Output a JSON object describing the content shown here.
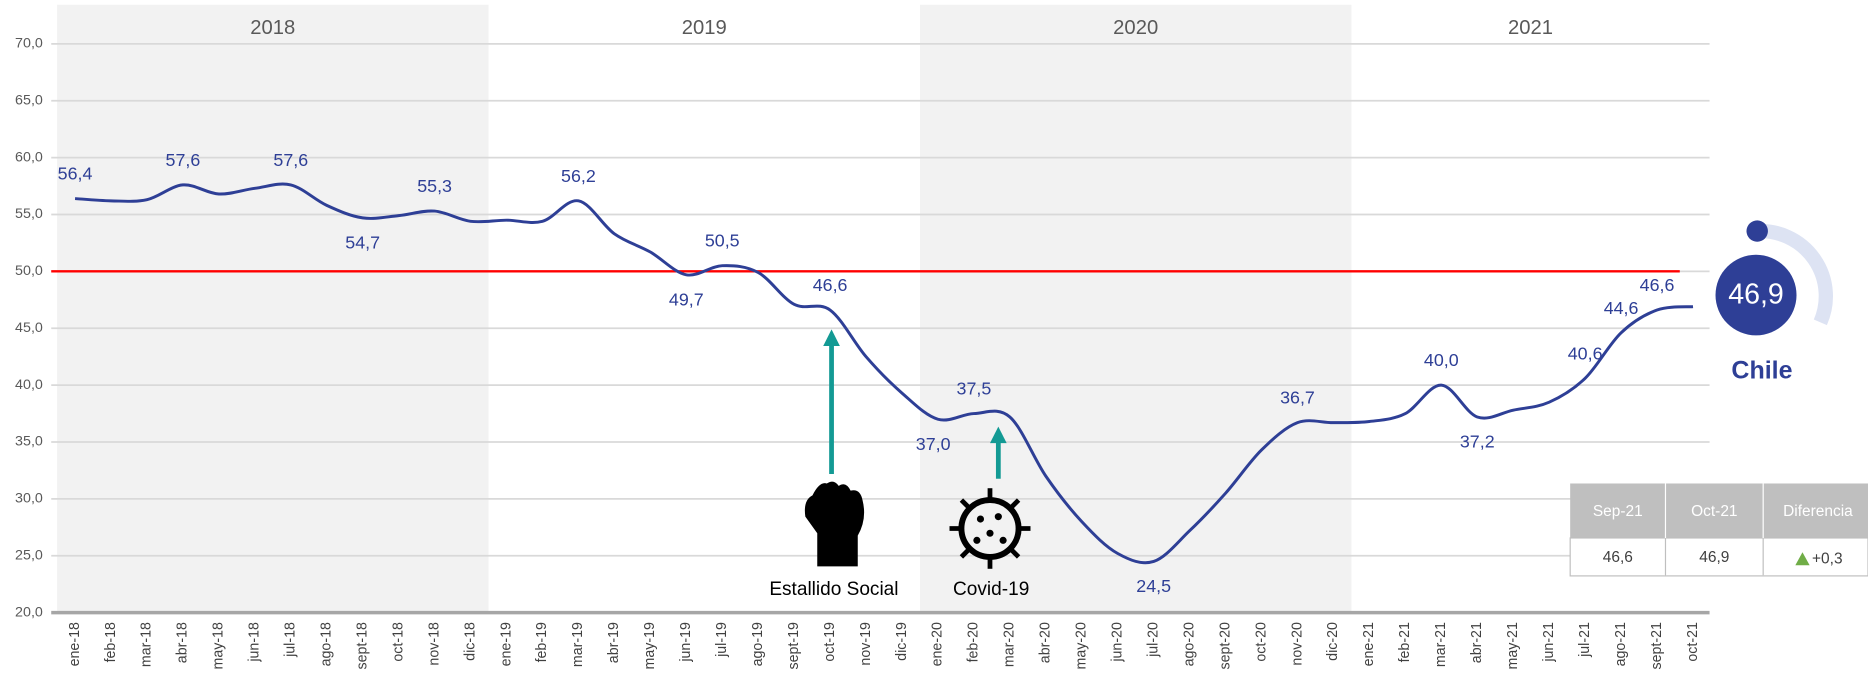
{
  "chart_data": {
    "type": "line",
    "years": [
      "2018",
      "2019",
      "2020",
      "2021"
    ],
    "categories": [
      "ene-18",
      "feb-18",
      "mar-18",
      "abr-18",
      "may-18",
      "jun-18",
      "jul-18",
      "ago-18",
      "sept-18",
      "oct-18",
      "nov-18",
      "dic-18",
      "ene-19",
      "feb-19",
      "mar-19",
      "abr-19",
      "may-19",
      "jun-19",
      "jul-19",
      "ago-19",
      "sept-19",
      "oct-19",
      "nov-19",
      "dic-19",
      "ene-20",
      "feb-20",
      "mar-20",
      "abr-20",
      "may-20",
      "jun-20",
      "jul-20",
      "ago-20",
      "sept-20",
      "oct-20",
      "nov-20",
      "dic-20",
      "ene-21",
      "feb-21",
      "mar-21",
      "abr-21",
      "may-21",
      "jun-21",
      "jul-21",
      "ago-21",
      "sept-21",
      "oct-21"
    ],
    "series": [
      {
        "name": "Chile",
        "color": "#2e3f96",
        "values": [
          56.4,
          56.2,
          56.3,
          57.6,
          56.8,
          57.3,
          57.6,
          55.8,
          54.7,
          54.9,
          55.3,
          54.4,
          54.5,
          54.4,
          56.2,
          53.3,
          51.7,
          49.7,
          50.5,
          49.9,
          47.1,
          46.6,
          42.5,
          39.3,
          37.0,
          37.5,
          37.2,
          32.0,
          28.0,
          25.2,
          24.5,
          27.2,
          30.5,
          34.3,
          36.7,
          36.7,
          36.8,
          37.5,
          40.0,
          37.2,
          37.8,
          38.5,
          40.6,
          44.6,
          46.6,
          46.9
        ],
        "value_labels": [
          "56,4",
          null,
          null,
          "57,6",
          null,
          null,
          "57,6",
          null,
          "54,7",
          null,
          "55,3",
          null,
          null,
          null,
          "56,2",
          null,
          null,
          "49,7",
          "50,5",
          null,
          null,
          "46,6",
          null,
          null,
          "37,0",
          "37,5",
          null,
          null,
          null,
          null,
          "24,5",
          null,
          null,
          null,
          "36,7",
          null,
          null,
          null,
          "40,0",
          "37,2",
          null,
          null,
          "40,6",
          "44,6",
          "46,6",
          null
        ]
      }
    ],
    "ylim": [
      20,
      70
    ],
    "yticks": [
      {
        "value": 20,
        "label": "20,0"
      },
      {
        "value": 25,
        "label": "25,0"
      },
      {
        "value": 30,
        "label": "30,0"
      },
      {
        "value": 35,
        "label": "35,0"
      },
      {
        "value": 40,
        "label": "40,0"
      },
      {
        "value": 45,
        "label": "45,0"
      },
      {
        "value": 50,
        "label": "50,0"
      },
      {
        "value": 55,
        "label": "55,0"
      },
      {
        "value": 60,
        "label": "60,0"
      },
      {
        "value": 65,
        "label": "65,0"
      },
      {
        "value": 70,
        "label": "70,0"
      }
    ],
    "grid": true,
    "reference_line": {
      "value": 50,
      "color": "#ff0000"
    },
    "annotations": [
      "Estallido Social",
      "Covid-19"
    ]
  },
  "summary": {
    "value": "46,9",
    "name": "Chile"
  },
  "table": {
    "headers": [
      "Sep-21",
      "Oct-21",
      "Diferencia"
    ],
    "rows": [
      [
        "46,6",
        "46,9",
        "+0,3"
      ]
    ]
  }
}
